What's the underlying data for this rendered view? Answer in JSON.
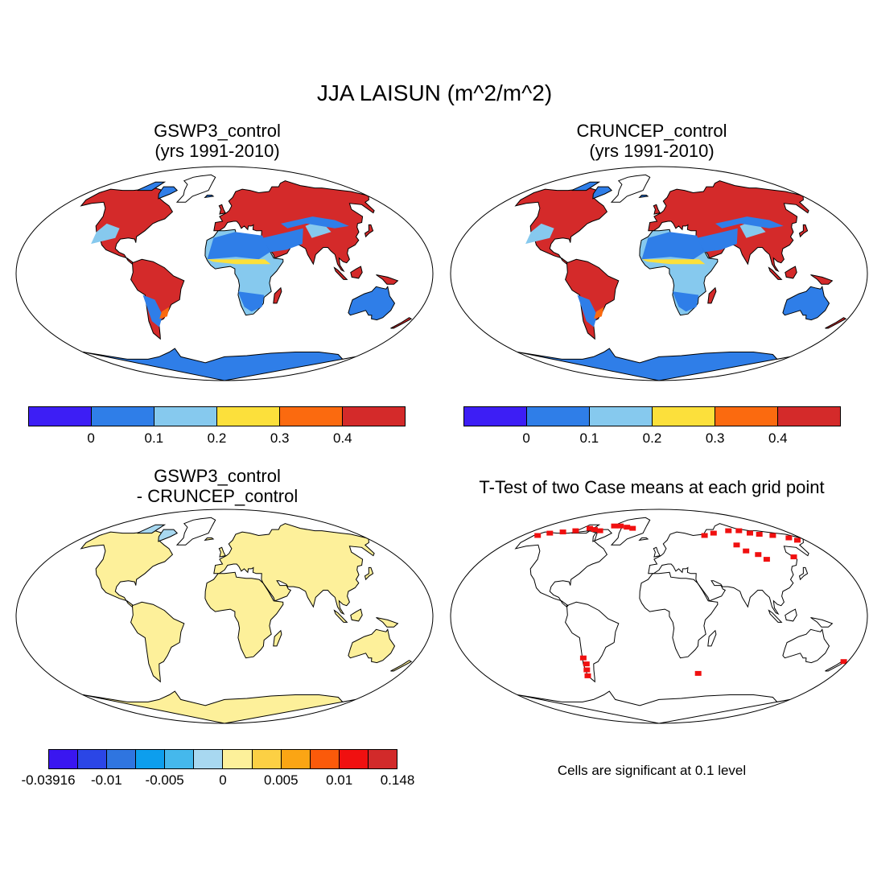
{
  "title": "JJA LAISUN (m^2/m^2)",
  "panels": [
    {
      "id": "gswp3",
      "title_line1": "GSWP3_control",
      "title_line2": "(yrs 1991-2010)"
    },
    {
      "id": "cruncep",
      "title_line1": "CRUNCEP_control",
      "title_line2": "(yrs 1991-2010)"
    },
    {
      "id": "diff",
      "title_line1": "GSWP3_control",
      "title_line2": "- CRUNCEP_control"
    },
    {
      "id": "ttest",
      "title_line1": "T-Test of two Case means at each grid point",
      "title_line2": ""
    }
  ],
  "colorbar_top": {
    "colors": [
      "#3d1ef5",
      "#2f7ee8",
      "#86c9ee",
      "#fce03b",
      "#fb6a0f",
      "#d42a2a"
    ],
    "ticks": [
      "0",
      "0.1",
      "0.2",
      "0.3",
      "0.4"
    ]
  },
  "colorbar_diff": {
    "colors": [
      "#3a16f0",
      "#2b46e6",
      "#2f75e0",
      "#0d9eed",
      "#45b8ec",
      "#a8d8f0",
      "#fdf09a",
      "#fcd044",
      "#fba514",
      "#fb5a0a",
      "#f01010",
      "#d22a2a"
    ],
    "ticks": [
      "-0.03916",
      "-0.01",
      "-0.005",
      "0",
      "0.005",
      "0.01",
      "0.148"
    ]
  },
  "significance_note": "Cells are significant at 0.1 level"
}
